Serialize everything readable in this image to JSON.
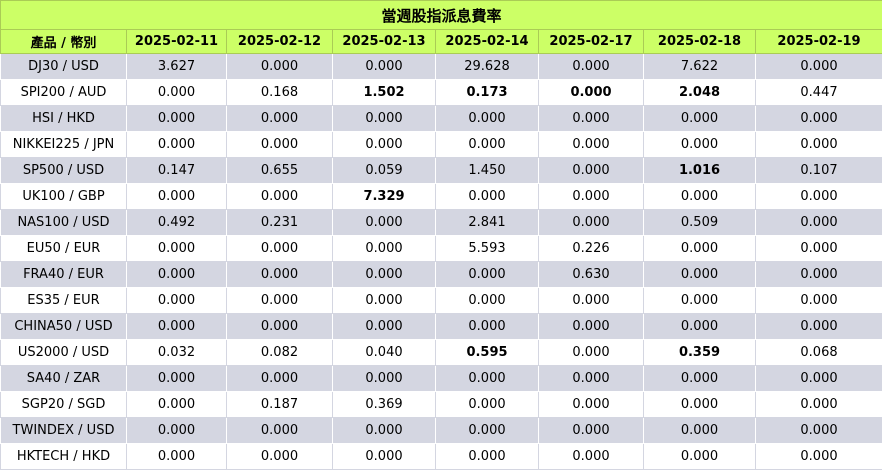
{
  "title": "當週股指派息費率",
  "columns": [
    "產品 / 幣別",
    "2025-02-11",
    "2025-02-12",
    "2025-02-13",
    "2025-02-14",
    "2025-02-17",
    "2025-02-18",
    "2025-02-19"
  ],
  "colors": {
    "header_bg": "#ccff66",
    "row_shade": "#d4d6e1",
    "row_plain": "#ffffff"
  },
  "rows": [
    {
      "product": "DJ30 / USD",
      "values": [
        "3.627",
        "0.000",
        "0.000",
        "29.628",
        "0.000",
        "7.622",
        "0.000"
      ],
      "bold": []
    },
    {
      "product": "SPI200 / AUD",
      "values": [
        "0.000",
        "0.168",
        "1.502",
        "0.173",
        "0.000",
        "2.048",
        "0.447"
      ],
      "bold": [
        2,
        3,
        4,
        5
      ]
    },
    {
      "product": "HSI / HKD",
      "values": [
        "0.000",
        "0.000",
        "0.000",
        "0.000",
        "0.000",
        "0.000",
        "0.000"
      ],
      "bold": []
    },
    {
      "product": "NIKKEI225 / JPN",
      "values": [
        "0.000",
        "0.000",
        "0.000",
        "0.000",
        "0.000",
        "0.000",
        "0.000"
      ],
      "bold": []
    },
    {
      "product": "SP500 / USD",
      "values": [
        "0.147",
        "0.655",
        "0.059",
        "1.450",
        "0.000",
        "1.016",
        "0.107"
      ],
      "bold": [
        5
      ]
    },
    {
      "product": "UK100 / GBP",
      "values": [
        "0.000",
        "0.000",
        "7.329",
        "0.000",
        "0.000",
        "0.000",
        "0.000"
      ],
      "bold": [
        2
      ]
    },
    {
      "product": "NAS100 / USD",
      "values": [
        "0.492",
        "0.231",
        "0.000",
        "2.841",
        "0.000",
        "0.509",
        "0.000"
      ],
      "bold": []
    },
    {
      "product": "EU50 / EUR",
      "values": [
        "0.000",
        "0.000",
        "0.000",
        "5.593",
        "0.226",
        "0.000",
        "0.000"
      ],
      "bold": []
    },
    {
      "product": "FRA40 / EUR",
      "values": [
        "0.000",
        "0.000",
        "0.000",
        "0.000",
        "0.630",
        "0.000",
        "0.000"
      ],
      "bold": []
    },
    {
      "product": "ES35 / EUR",
      "values": [
        "0.000",
        "0.000",
        "0.000",
        "0.000",
        "0.000",
        "0.000",
        "0.000"
      ],
      "bold": []
    },
    {
      "product": "CHINA50 / USD",
      "values": [
        "0.000",
        "0.000",
        "0.000",
        "0.000",
        "0.000",
        "0.000",
        "0.000"
      ],
      "bold": []
    },
    {
      "product": "US2000 / USD",
      "values": [
        "0.032",
        "0.082",
        "0.040",
        "0.595",
        "0.000",
        "0.359",
        "0.068"
      ],
      "bold": [
        3,
        5
      ]
    },
    {
      "product": "SA40 / ZAR",
      "values": [
        "0.000",
        "0.000",
        "0.000",
        "0.000",
        "0.000",
        "0.000",
        "0.000"
      ],
      "bold": []
    },
    {
      "product": "SGP20 / SGD",
      "values": [
        "0.000",
        "0.187",
        "0.369",
        "0.000",
        "0.000",
        "0.000",
        "0.000"
      ],
      "bold": []
    },
    {
      "product": "TWINDEX / USD",
      "values": [
        "0.000",
        "0.000",
        "0.000",
        "0.000",
        "0.000",
        "0.000",
        "0.000"
      ],
      "bold": []
    },
    {
      "product": "HKTECH / HKD",
      "values": [
        "0.000",
        "0.000",
        "0.000",
        "0.000",
        "0.000",
        "0.000",
        "0.000"
      ],
      "bold": []
    }
  ]
}
